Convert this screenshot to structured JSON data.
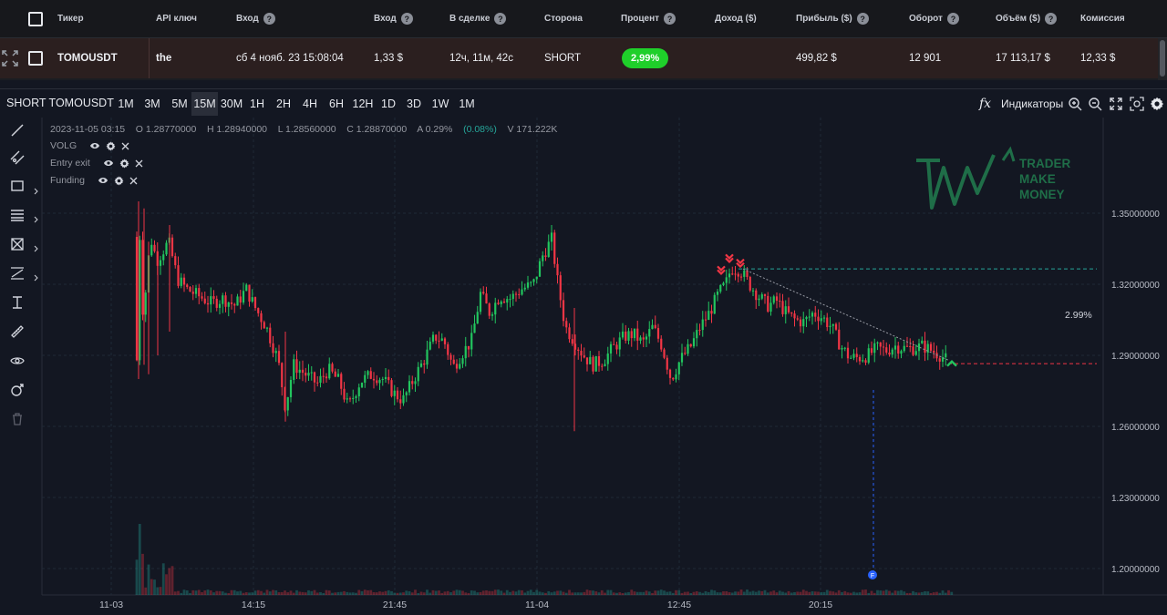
{
  "table": {
    "headers": [
      {
        "label": "Тикер",
        "help": false
      },
      {
        "label": "API ключ",
        "help": false
      },
      {
        "label": "Вход",
        "help": true
      },
      {
        "label": "Вход",
        "help": true
      },
      {
        "label": "В сделке",
        "help": true
      },
      {
        "label": "Сторона",
        "help": false
      },
      {
        "label": "Процент",
        "help": true
      },
      {
        "label": "Доход ($)",
        "help": false
      },
      {
        "label": "Прибыль ($)",
        "help": true
      },
      {
        "label": "Оборот",
        "help": true
      },
      {
        "label": "Объём ($)",
        "help": true
      },
      {
        "label": "Комиссия",
        "help": false
      }
    ],
    "row": {
      "ticker": "TOMOUSDT",
      "api_key": "the",
      "entry_time": "сб 4 нояб. 23 15:08:04",
      "entry_amount": "1,33 $",
      "in_trade": "12ч, 11м, 42с",
      "side": "SHORT",
      "percent": "2,99%",
      "income": "",
      "profit": "499,82 $",
      "turnover": "12 901",
      "volume": "17 113,17 $",
      "commission": "12,33 $"
    }
  },
  "chart": {
    "symbol_title": "SHORT TOMOUSDT",
    "timeframes": [
      "1M",
      "3M",
      "5M",
      "15M",
      "30M",
      "1H",
      "2H",
      "4H",
      "6H",
      "12H",
      "1D",
      "3D",
      "1W",
      "1M"
    ],
    "active_timeframe_index": 3,
    "indicators_label": "Индикаторы",
    "fx_label": "fx",
    "ohlc": {
      "date": "2023-11-05 03:15",
      "open": "O 1.28770000",
      "high": "H 1.28940000",
      "low": "L 1.28560000",
      "close": "C 1.28870000",
      "change_abs": "A 0.29%",
      "change_pct": "(0.08%)",
      "volume": "V 171.222K"
    },
    "indicators": [
      "VOLG",
      "Entry exit",
      "Funding"
    ],
    "logo_lines": [
      "TRADER",
      "MAKE",
      "MONEY"
    ],
    "trade_percent_label": "2.99%",
    "funding_marker": "F",
    "colors": {
      "up": "#26a69a",
      "up_candle": "#22c55e",
      "down": "#f23645",
      "entry_line": "#26a69a",
      "exit_line": "#f23645",
      "logo": "#1f6e48"
    }
  },
  "chart_data": {
    "type": "candlestick",
    "price_ticks": [
      "1.35000000",
      "1.32000000",
      "1.29000000",
      "1.26000000",
      "1.23000000",
      "1.20000000"
    ],
    "price_tick_values": [
      1.35,
      1.32,
      1.29,
      1.26,
      1.23,
      1.2
    ],
    "time_ticks": [
      "11-03",
      "14:15",
      "21:45",
      "11-04",
      "12:45",
      "20:15"
    ],
    "entry_price": 1.3265,
    "exit_price": 1.2865,
    "trade_percent": 2.99
  }
}
